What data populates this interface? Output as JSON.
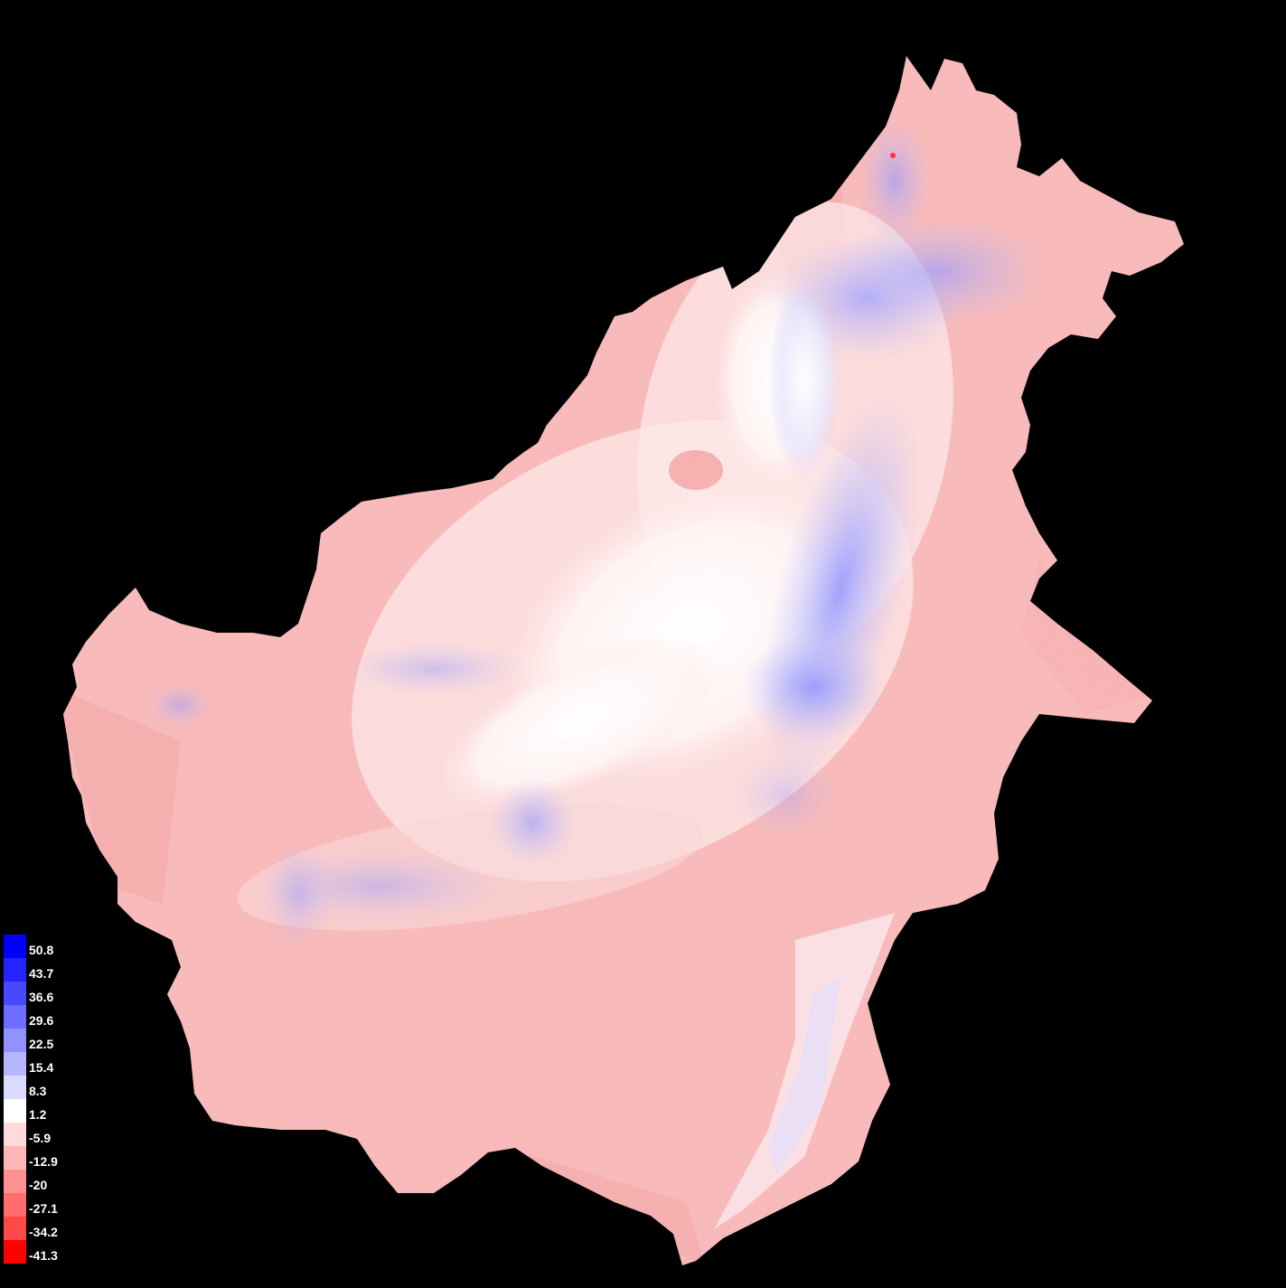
{
  "map": {
    "background_color": "#000000",
    "description_colors": {
      "low": "#ff0000",
      "mid": "#ffffff",
      "high": "#0000ff"
    }
  },
  "legend": {
    "items": [
      {
        "label": "50.8",
        "color": "#0000ff"
      },
      {
        "label": "43.7",
        "color": "#2424ff"
      },
      {
        "label": "36.6",
        "color": "#4848ff"
      },
      {
        "label": "29.6",
        "color": "#6d6dff"
      },
      {
        "label": "22.5",
        "color": "#9191ff"
      },
      {
        "label": "15.4",
        "color": "#b6b6ff"
      },
      {
        "label": "8.3",
        "color": "#dadaff"
      },
      {
        "label": "1.2",
        "color": "#ffffff"
      },
      {
        "label": "-5.9",
        "color": "#ffdada"
      },
      {
        "label": "-12.9",
        "color": "#ffb6b6"
      },
      {
        "label": "-20",
        "color": "#ff9191"
      },
      {
        "label": "-27.1",
        "color": "#ff6d6d"
      },
      {
        "label": "-34.2",
        "color": "#ff4848"
      },
      {
        "label": "-41.3",
        "color": "#ff0000"
      }
    ]
  }
}
